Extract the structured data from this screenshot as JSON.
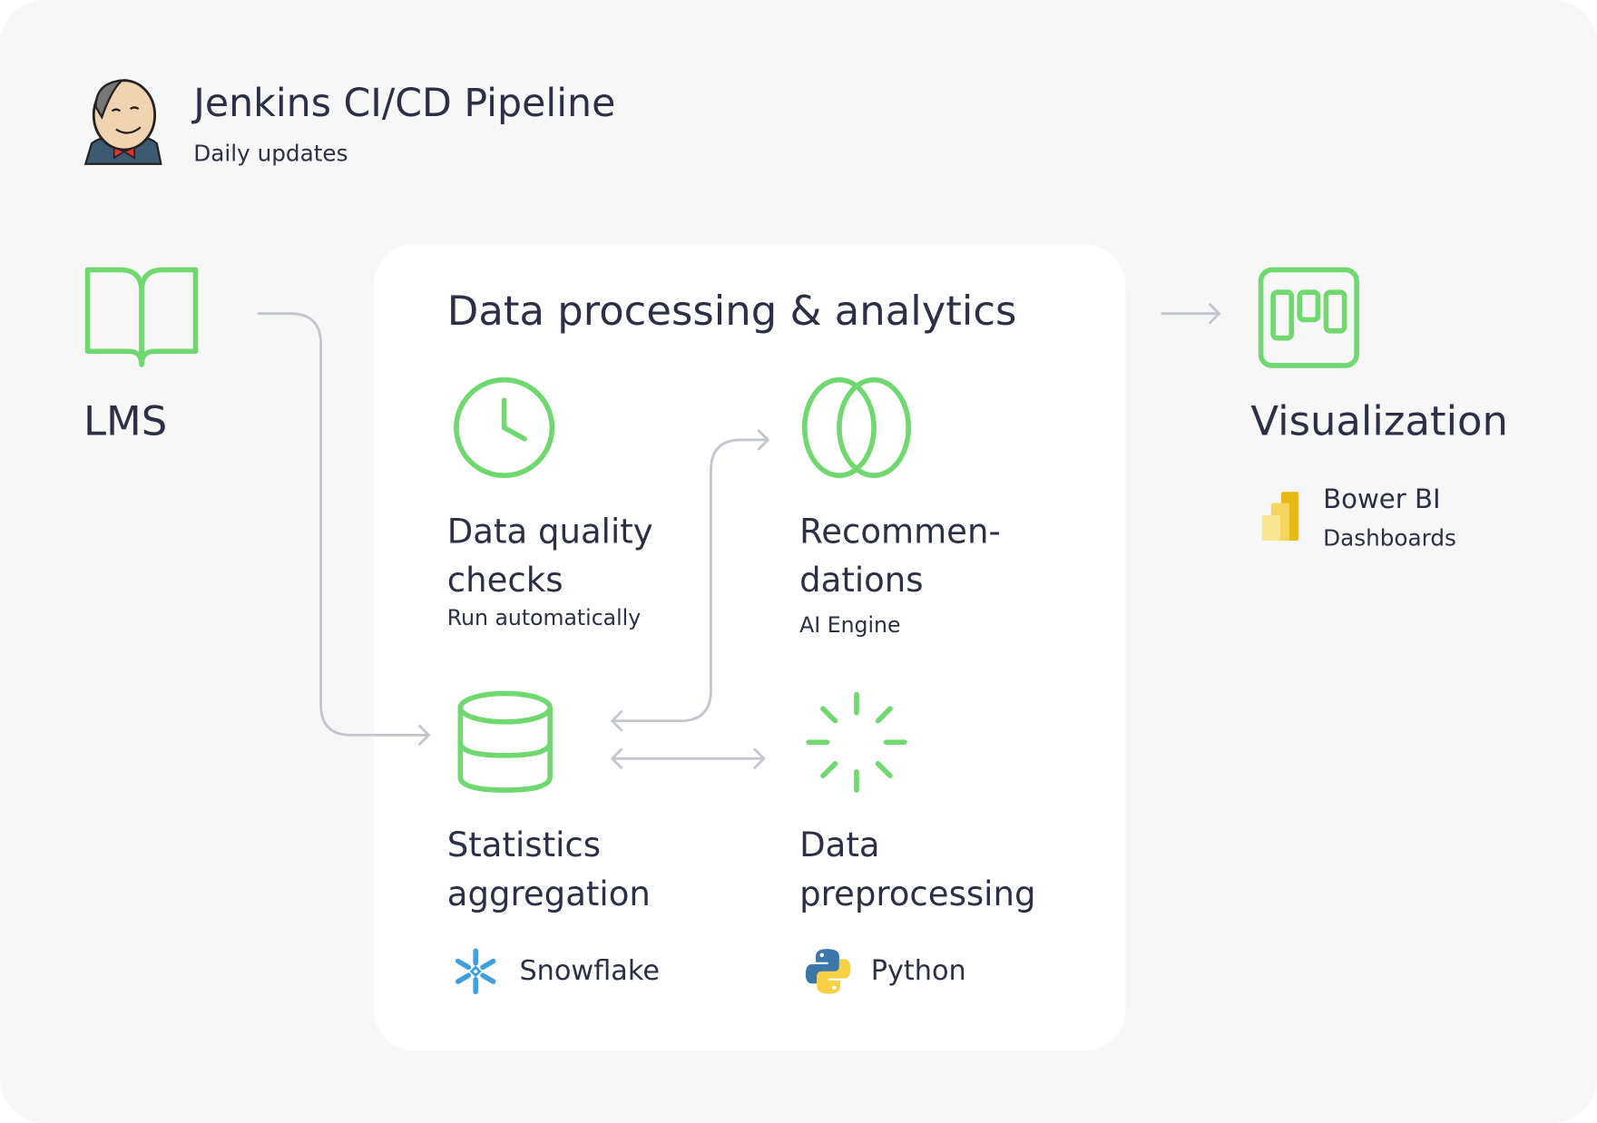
{
  "header": {
    "title": "Jenkins CI/CD Pipeline",
    "subtitle": "Daily updates",
    "logo": "jenkins-logo"
  },
  "source": {
    "label": "LMS",
    "icon": "book-icon"
  },
  "panel": {
    "title": "Data processing & analytics",
    "nodes": [
      {
        "title_line1": "Data quality",
        "title_line2": "checks",
        "caption": "Run automatically",
        "icon": "clock-icon"
      },
      {
        "title_line1": "Recommen-",
        "title_line2": "dations",
        "caption": "AI Engine",
        "icon": "venn-icon"
      },
      {
        "title_line1": "Statistics",
        "title_line2": "aggregation",
        "tool": "Snowflake",
        "icon": "database-icon",
        "tool_icon": "snowflake-icon"
      },
      {
        "title_line1": "Data",
        "title_line2": "preprocessing",
        "tool": "Python",
        "icon": "loader-icon",
        "tool_icon": "python-icon"
      }
    ]
  },
  "output": {
    "label": "Visualization",
    "tool": "Bower BI",
    "tool_caption": "Dashboards",
    "icon": "kanban-icon",
    "tool_icon": "power-bi-icon"
  },
  "colors": {
    "accent": "#6fd86f",
    "text": "#2c2f45",
    "connector": "#c4c6cf",
    "background": "#f7f7f7",
    "panel": "#ffffff"
  }
}
